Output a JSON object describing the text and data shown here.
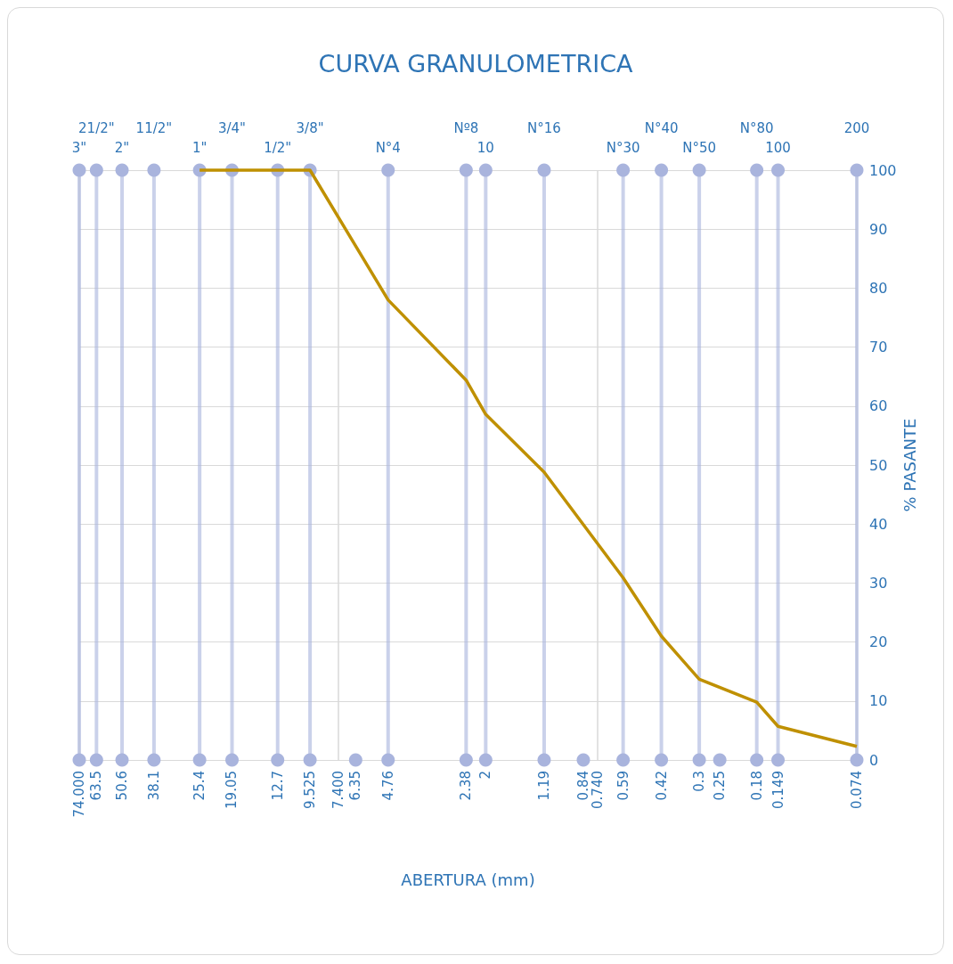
{
  "chart_data": {
    "type": "line",
    "title": "CURVA GRANULOMETRICA",
    "xlabel": "ABERTURA (mm)",
    "ylabel": "% PASANTE",
    "log": "x",
    "grid": true,
    "xlim": [
      74,
      0.074
    ],
    "xticks": [
      {
        "value": 74,
        "label": "74.000"
      },
      63.5,
      50.6,
      38.1,
      25.4,
      19.05,
      12.7,
      9.525,
      {
        "value": 7.4,
        "label": "7.400"
      },
      6.35,
      4.76,
      2.38,
      2,
      1.19,
      0.84,
      {
        "value": 0.74,
        "label": "0.740"
      },
      0.59,
      0.42,
      0.3,
      0.25,
      0.18,
      0.149,
      0.074
    ],
    "ylim": [
      0,
      100
    ],
    "yticks": [
      0,
      10,
      20,
      30,
      40,
      50,
      60,
      70,
      80,
      90,
      100
    ],
    "series": [
      {
        "type": "lollipop",
        "marker": "circle",
        "color": "#a9b4dd",
        "x": [
          74,
          63.5,
          50.6,
          38.1,
          25.4,
          19.05,
          12.7,
          9.525,
          4.76,
          2.38,
          2,
          1.19,
          0.59,
          0.42,
          0.3,
          0.18,
          0.149,
          0.074
        ],
        "values": [
          100,
          100,
          100,
          100,
          100,
          100,
          100,
          100,
          100,
          100,
          100,
          100,
          100,
          100,
          100,
          100,
          100,
          100
        ]
      },
      {
        "type": "scatter",
        "marker": "circle",
        "color": "#a9b4dd",
        "x": [
          74,
          63.5,
          50.6,
          38.1,
          25.4,
          19.05,
          12.7,
          9.525,
          6.35,
          4.76,
          2.38,
          2,
          1.19,
          0.84,
          0.59,
          0.42,
          0.3,
          0.25,
          0.18,
          0.149,
          0.074
        ],
        "values": [
          0,
          0,
          0,
          0,
          0,
          0,
          0,
          0,
          0,
          0,
          0,
          0,
          0,
          0,
          0,
          0,
          0,
          0,
          0,
          0,
          0
        ]
      },
      {
        "marker": "none",
        "color": "#bf9000",
        "x": [
          25.4,
          19.05,
          12.7,
          9.525,
          4.76,
          2.38,
          2,
          1.19,
          0.59,
          0.42,
          0.3,
          0.18,
          0.149,
          0.074
        ],
        "values": [
          100,
          100,
          100,
          100,
          78,
          64.4,
          58.6,
          48.8,
          30.9,
          21,
          13.7,
          9.8,
          5.7,
          2.3
        ]
      }
    ],
    "annotations": [
      {
        "text": "3\"",
        "x": 74,
        "y": 100
      },
      {
        "text": "21/2\"",
        "x": 63.5,
        "y": 100
      },
      {
        "text": "2\"",
        "x": 50.6,
        "y": 100
      },
      {
        "text": "11/2\"",
        "x": 38.1,
        "y": 100
      },
      {
        "text": "1\"",
        "x": 25.4,
        "y": 100
      },
      {
        "text": "3/4\"",
        "x": 19.05,
        "y": 100
      },
      {
        "text": "1/2\"",
        "x": 12.7,
        "y": 100
      },
      {
        "text": "3/8\"",
        "x": 9.525,
        "y": 100
      },
      {
        "text": "N°4",
        "x": 4.76,
        "y": 100
      },
      {
        "text": "Nº8",
        "x": 2.38,
        "y": 100
      },
      {
        "text": "10",
        "x": 2,
        "y": 100
      },
      {
        "text": "N°16",
        "x": 1.19,
        "y": 100
      },
      {
        "text": "N°30",
        "x": 0.59,
        "y": 100
      },
      {
        "text": "N°40",
        "x": 0.42,
        "y": 100
      },
      {
        "text": "N°50",
        "x": 0.3,
        "y": 100
      },
      {
        "text": "N°80",
        "x": 0.18,
        "y": 100
      },
      {
        "text": "100",
        "x": 0.149,
        "y": 100
      },
      {
        "text": "200",
        "x": 0.074,
        "y": 100
      }
    ]
  }
}
